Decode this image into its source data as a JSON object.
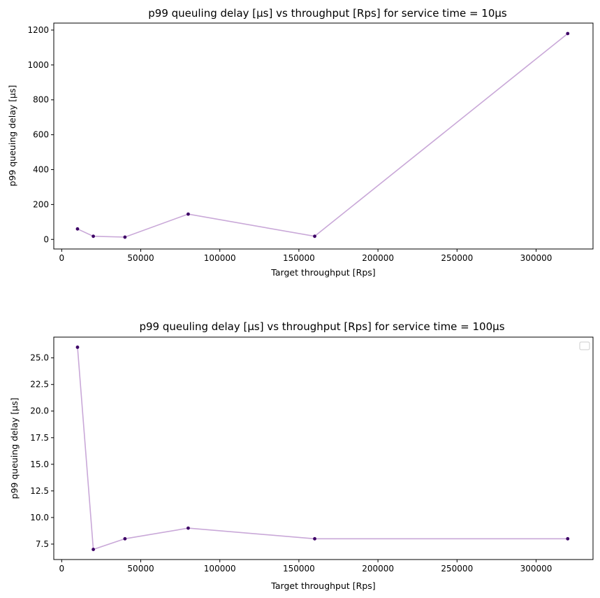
{
  "chart_data": [
    {
      "type": "line",
      "title": "p99 queuling delay [μs] vs throughput [Rps] for service time = 10μs",
      "xlabel": "Target throughput [Rps]",
      "ylabel": "p99 queuing delay [μs]",
      "x": [
        10000,
        20000,
        40000,
        80000,
        160000,
        320000
      ],
      "series": [
        {
          "values": [
            60,
            18,
            13,
            145,
            18,
            1180
          ]
        }
      ],
      "xlim": [
        -5000,
        336000
      ],
      "ylim": [
        -55,
        1240
      ],
      "xticks": [
        0,
        50000,
        100000,
        150000,
        200000,
        250000,
        300000
      ],
      "xtick_labels": [
        "0",
        "50000",
        "100000",
        "150000",
        "200000",
        "250000",
        "300000"
      ],
      "yticks": [
        0,
        200,
        400,
        600,
        800,
        1000,
        1200
      ],
      "ytick_labels": [
        "0",
        "200",
        "400",
        "600",
        "800",
        "1000",
        "1200"
      ],
      "grid": false,
      "legend": false
    },
    {
      "type": "line",
      "title": "p99 queuling delay [μs] vs throughput [Rps] for service time = 100μs",
      "xlabel": "Target throughput [Rps]",
      "ylabel": "p99 queuing delay [μs]",
      "x": [
        10000,
        20000,
        40000,
        80000,
        160000,
        320000
      ],
      "series": [
        {
          "values": [
            26,
            7,
            8,
            9,
            8,
            8
          ]
        }
      ],
      "xlim": [
        -5000,
        336000
      ],
      "ylim": [
        6.05,
        26.95
      ],
      "xticks": [
        0,
        50000,
        100000,
        150000,
        200000,
        250000,
        300000
      ],
      "xtick_labels": [
        "0",
        "50000",
        "100000",
        "150000",
        "200000",
        "250000",
        "300000"
      ],
      "yticks": [
        7.5,
        10.0,
        12.5,
        15.0,
        17.5,
        20.0,
        22.5,
        25.0
      ],
      "ytick_labels": [
        "7.5",
        "10.0",
        "12.5",
        "15.0",
        "17.5",
        "20.0",
        "22.5",
        "25.0"
      ],
      "grid": false,
      "legend": "top-right, empty"
    }
  ],
  "colors": {
    "line": "#c9a8d8",
    "marker": "#3d0066",
    "axes": "#000000",
    "legend_border": "#cccccc"
  }
}
